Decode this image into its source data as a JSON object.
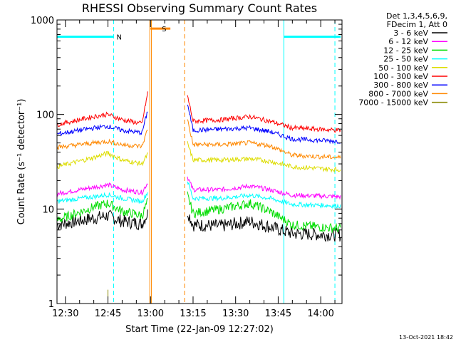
{
  "title": "RHESSI Observing Summary Count Rates",
  "chart_data": {
    "type": "line",
    "title": "RHESSI Observing Summary Count Rates",
    "xlabel": "Start Time (22-Jan-09 12:27:02)",
    "ylabel": "Count Rate (s⁻¹ detector⁻¹)",
    "y_scale": "log",
    "ylim": [
      1,
      1000
    ],
    "xlim": [
      "12:27:02",
      "14:07:30"
    ],
    "x_tick_labels": [
      "12:30",
      "12:45",
      "13:00",
      "13:15",
      "13:30",
      "13:45",
      "14:00"
    ],
    "y_tick_labels": [
      "1",
      "10",
      "100",
      "1000"
    ],
    "legend_header": [
      "Det 1,3,4,5,6,9,",
      "FDecim 1, Att 0"
    ],
    "legend_position": "right",
    "grid": false,
    "series": [
      {
        "name": "3 - 6 keV",
        "color": "#000000",
        "points": [
          [
            "12:27",
            6.8
          ],
          [
            "12:40",
            8.0
          ],
          [
            "12:45",
            8.5
          ],
          [
            "12:50",
            7.4
          ],
          [
            "12:57",
            7.0
          ],
          [
            "12:59",
            9.0
          ],
          [
            "13:13",
            9.5
          ],
          [
            "13:15",
            6.8
          ],
          [
            "13:25",
            6.6
          ],
          [
            "13:35",
            7.4
          ],
          [
            "13:42",
            6.5
          ],
          [
            "13:50",
            5.5
          ],
          [
            "14:07",
            5.3
          ]
        ]
      },
      {
        "name": "6 - 12 keV",
        "color": "#ff00ff",
        "points": [
          [
            "12:27",
            14.5
          ],
          [
            "12:40",
            17.0
          ],
          [
            "12:45",
            18.0
          ],
          [
            "12:50",
            16.0
          ],
          [
            "12:57",
            15.0
          ],
          [
            "12:59",
            19.0
          ],
          [
            "13:13",
            22.0
          ],
          [
            "13:15",
            16.0
          ],
          [
            "13:25",
            16.0
          ],
          [
            "13:35",
            17.5
          ],
          [
            "13:42",
            16.0
          ],
          [
            "13:50",
            14.0
          ],
          [
            "14:07",
            13.5
          ]
        ]
      },
      {
        "name": "12 - 25 keV",
        "color": "#00dd00",
        "points": [
          [
            "12:27",
            7.6
          ],
          [
            "12:40",
            10.5
          ],
          [
            "12:45",
            11.5
          ],
          [
            "12:50",
            9.5
          ],
          [
            "12:57",
            8.5
          ],
          [
            "12:59",
            12.0
          ],
          [
            "13:13",
            14.0
          ],
          [
            "13:15",
            9.0
          ],
          [
            "13:25",
            10.0
          ],
          [
            "13:35",
            11.5
          ],
          [
            "13:42",
            9.5
          ],
          [
            "13:50",
            6.8
          ],
          [
            "14:07",
            6.2
          ]
        ]
      },
      {
        "name": "25 - 50 keV",
        "color": "#00ffff",
        "points": [
          [
            "12:27",
            12.0
          ],
          [
            "12:40",
            13.5
          ],
          [
            "12:45",
            14.2
          ],
          [
            "12:50",
            13.0
          ],
          [
            "12:57",
            12.0
          ],
          [
            "12:59",
            15.0
          ],
          [
            "13:13",
            20.0
          ],
          [
            "13:15",
            13.0
          ],
          [
            "13:25",
            13.0
          ],
          [
            "13:35",
            14.0
          ],
          [
            "13:42",
            13.0
          ],
          [
            "13:50",
            11.2
          ],
          [
            "14:07",
            10.8
          ]
        ]
      },
      {
        "name": "50 - 100 keV",
        "color": "#dddd00",
        "points": [
          [
            "12:27",
            28.0
          ],
          [
            "12:40",
            35.0
          ],
          [
            "12:45",
            39.0
          ],
          [
            "12:50",
            33.0
          ],
          [
            "12:57",
            30.0
          ],
          [
            "12:59",
            38.0
          ],
          [
            "13:13",
            50.0
          ],
          [
            "13:15",
            33.0
          ],
          [
            "13:25",
            33.0
          ],
          [
            "13:35",
            34.0
          ],
          [
            "13:42",
            32.0
          ],
          [
            "13:50",
            28.0
          ],
          [
            "14:07",
            26.0
          ]
        ]
      },
      {
        "name": "100 - 300 keV",
        "color": "#ff0000",
        "points": [
          [
            "12:27",
            78.0
          ],
          [
            "12:40",
            95.0
          ],
          [
            "12:45",
            100.0
          ],
          [
            "12:50",
            88.0
          ],
          [
            "12:57",
            80.0
          ],
          [
            "12:59",
            170.0
          ],
          [
            "13:13",
            160.0
          ],
          [
            "13:15",
            85.0
          ],
          [
            "13:25",
            88.0
          ],
          [
            "13:35",
            95.0
          ],
          [
            "13:42",
            85.0
          ],
          [
            "13:50",
            72.0
          ],
          [
            "14:07",
            68.0
          ]
        ]
      },
      {
        "name": "300 - 800 keV",
        "color": "#0000ff",
        "points": [
          [
            "12:27",
            62.0
          ],
          [
            "12:40",
            72.0
          ],
          [
            "12:45",
            75.0
          ],
          [
            "12:50",
            68.0
          ],
          [
            "12:57",
            64.0
          ],
          [
            "12:59",
            110.0
          ],
          [
            "13:13",
            130.0
          ],
          [
            "13:15",
            68.0
          ],
          [
            "13:25",
            70.0
          ],
          [
            "13:35",
            72.0
          ],
          [
            "13:42",
            66.0
          ],
          [
            "13:50",
            55.0
          ],
          [
            "14:07",
            52.0
          ]
        ]
      },
      {
        "name": "800 - 7000 keV",
        "color": "#ff8800",
        "points": [
          [
            "12:27",
            45.0
          ],
          [
            "12:40",
            50.0
          ],
          [
            "12:45",
            52.0
          ],
          [
            "12:50",
            48.0
          ],
          [
            "12:57",
            46.0
          ],
          [
            "12:59",
            70.0
          ],
          [
            "13:13",
            90.0
          ],
          [
            "13:15",
            48.0
          ],
          [
            "13:25",
            48.0
          ],
          [
            "13:35",
            50.0
          ],
          [
            "13:42",
            47.0
          ],
          [
            "13:50",
            37.0
          ],
          [
            "14:07",
            35.0
          ]
        ]
      },
      {
        "name": "7000 - 15000 keV",
        "color": "#888800",
        "points": [
          [
            "12:45",
            1.1
          ],
          [
            "12:45",
            1.4
          ],
          [
            "12:45",
            1.1
          ]
        ]
      }
    ],
    "flag_bars": [
      {
        "label": "N",
        "color": "#00ffff",
        "value": 665,
        "segments": [
          [
            "12:27",
            "12:47"
          ],
          [
            "13:47",
            "14:07"
          ]
        ]
      },
      {
        "label": "S",
        "color": "#ff8800",
        "value": 810,
        "segments": [
          [
            "13:00",
            "13:07"
          ]
        ]
      }
    ],
    "vlines": [
      {
        "time": "12:27:02",
        "color": "#00ffff",
        "style": "solid"
      },
      {
        "time": "12:47:00",
        "color": "#00ffff",
        "style": "dashed"
      },
      {
        "time": "12:59:45",
        "color": "#ff8800",
        "style": "solid"
      },
      {
        "time": "13:00:20",
        "color": "#ff8800",
        "style": "solid"
      },
      {
        "time": "13:12:00",
        "color": "#ff8800",
        "style": "dashed"
      },
      {
        "time": "13:47:00",
        "color": "#00ffff",
        "style": "solid"
      },
      {
        "time": "14:05:00",
        "color": "#00ffff",
        "style": "dashed"
      }
    ]
  },
  "timestamp": "13-Oct-2021 18:42"
}
